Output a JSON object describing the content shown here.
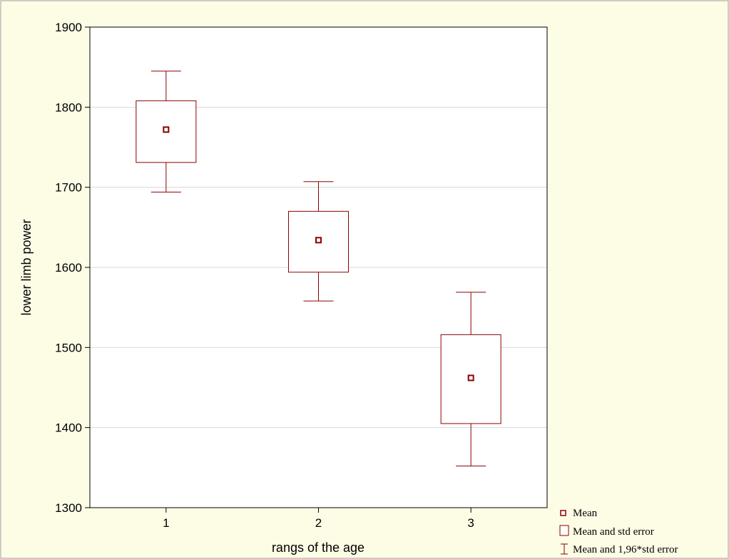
{
  "chart_data": {
    "type": "box",
    "xlabel": "rangs of the age",
    "ylabel": "lower limb power",
    "categories": [
      "1",
      "2",
      "3"
    ],
    "ylim": [
      1300,
      1900
    ],
    "yticks": [
      1300,
      1400,
      1500,
      1600,
      1700,
      1800,
      1900
    ],
    "grid": "horizontal",
    "legend_position": "bottom-right",
    "groups": [
      {
        "category": "1",
        "mean": 1772,
        "se_low": 1731,
        "se_high": 1808,
        "ci_low": 1694,
        "ci_high": 1845
      },
      {
        "category": "2",
        "mean": 1634,
        "se_low": 1594,
        "se_high": 1670,
        "ci_low": 1558,
        "ci_high": 1707
      },
      {
        "category": "3",
        "mean": 1462,
        "se_low": 1405,
        "se_high": 1516,
        "ci_low": 1352,
        "ci_high": 1569
      }
    ],
    "legend": [
      {
        "marker": "mean-square",
        "label": "Mean"
      },
      {
        "marker": "box",
        "label": "Mean and std error"
      },
      {
        "marker": "whisker",
        "label": "Mean and 1,96*std error"
      }
    ],
    "colors": {
      "series": "#8b0000",
      "background": "#fdfde6",
      "plot_bg": "#ffffff",
      "grid": "#d9d9d9"
    }
  }
}
